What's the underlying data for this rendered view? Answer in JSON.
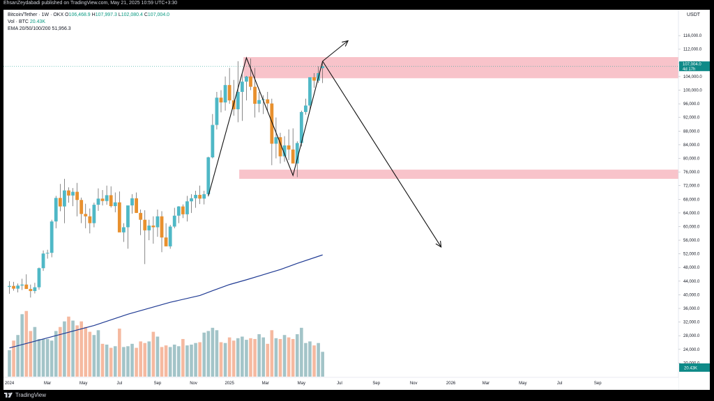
{
  "header": {
    "credit": "EhsanZeydabadi published on TradingView.com, May 21, 2025 10:59 UTC+3:30"
  },
  "legend": {
    "symbol": "Bitcoin/Tether · 1W · OKX",
    "ohlc": [
      {
        "k": "O",
        "v": "106,468.9"
      },
      {
        "k": "H",
        "v": "107,997.3"
      },
      {
        "k": "L",
        "v": "102,080.4"
      },
      {
        "k": "C",
        "v": "107,004.0"
      }
    ],
    "volume_label": "Vol · BTC",
    "volume_value": "20.43K",
    "ema_label": "EMA 20/50/100/200",
    "ema_value": "51,956.3"
  },
  "axis": {
    "currency": "USDT",
    "price_badge": "107,004.0",
    "countdown_badge": "4d 17h",
    "volume_badge": "20.43K"
  },
  "footer": {
    "brand": "TradingView"
  },
  "colors": {
    "up": "#4fb8c6",
    "down": "#e8902e",
    "vol_up": "#a3c4c8",
    "vol_down": "#f5b9a0",
    "ema": "#1f3a93",
    "zone": "#f5a3ad",
    "badge": "#0f8a88"
  },
  "chart_data": {
    "type": "candlestick",
    "symbol": "Bitcoin/Tether",
    "timeframe": "1W",
    "exchange": "OKX",
    "y_axis": {
      "ticks": [
        20000,
        24000,
        28000,
        32000,
        36000,
        40000,
        44000,
        48000,
        52000,
        56000,
        60000,
        64000,
        68000,
        72000,
        76000,
        80000,
        84000,
        88000,
        92000,
        96000,
        100000,
        104000,
        108000,
        112000,
        116000
      ],
      "tick_labels": [
        "20,000.0",
        "24,000.0",
        "28,000.0",
        "32,000.0",
        "36,000.0",
        "40,000.0",
        "44,000.0",
        "48,000.0",
        "52,000.0",
        "56,000.0",
        "60,000.0",
        "64,000.0",
        "68,000.0",
        "72,000.0",
        "76,000.0",
        "80,000.0",
        "84,000.0",
        "88,000.0",
        "92,000.0",
        "96,000.0",
        "100,000.0",
        "104,000.0",
        "108,000.0",
        "112,000.0",
        "116,000.0"
      ],
      "range": [
        16000,
        119500
      ]
    },
    "x_axis": {
      "labels": [
        {
          "text": "2024",
          "week": 0
        },
        {
          "text": "Mar",
          "week": 9
        },
        {
          "text": "May",
          "week": 17.5
        },
        {
          "text": "Jul",
          "week": 26
        },
        {
          "text": "Sep",
          "week": 35
        },
        {
          "text": "Nov",
          "week": 43.5
        },
        {
          "text": "2025",
          "week": 52
        },
        {
          "text": "Mar",
          "week": 60.5
        },
        {
          "text": "May",
          "week": 69
        },
        {
          "text": "Jul",
          "week": 78
        },
        {
          "text": "Sep",
          "week": 86.7
        },
        {
          "text": "Nov",
          "week": 95.5
        },
        {
          "text": "2026",
          "week": 104.3
        },
        {
          "text": "Mar",
          "week": 112.6
        },
        {
          "text": "May",
          "week": 121.3
        },
        {
          "text": "Jul",
          "week": 130
        },
        {
          "text": "Sep",
          "week": 139
        }
      ]
    },
    "candles_ohlc": [
      [
        42300,
        44000,
        40300,
        42600
      ],
      [
        42600,
        43800,
        41200,
        41800
      ],
      [
        41800,
        43300,
        40700,
        42700
      ],
      [
        42700,
        44700,
        41400,
        43000
      ],
      [
        43000,
        46000,
        42000,
        41700
      ],
      [
        41700,
        43000,
        39200,
        41100
      ],
      [
        41100,
        43500,
        40400,
        42200
      ],
      [
        42200,
        48000,
        41500,
        47800
      ],
      [
        47800,
        53000,
        47000,
        52100
      ],
      [
        52100,
        53200,
        50600,
        52300
      ],
      [
        52300,
        62000,
        51000,
        61500
      ],
      [
        61500,
        69000,
        59500,
        68400
      ],
      [
        68400,
        72500,
        64500,
        65900
      ],
      [
        65900,
        74000,
        61000,
        70600
      ],
      [
        70600,
        71500,
        67000,
        69100
      ],
      [
        69100,
        71300,
        66000,
        70200
      ],
      [
        70200,
        72800,
        63000,
        67800
      ],
      [
        67800,
        68500,
        61000,
        63700
      ],
      [
        63700,
        66700,
        59500,
        63000
      ],
      [
        63000,
        65300,
        58000,
        61000
      ],
      [
        61000,
        67000,
        59800,
        66400
      ],
      [
        66400,
        71200,
        64600,
        68200
      ],
      [
        68200,
        70700,
        66200,
        67500
      ],
      [
        67500,
        72000,
        66400,
        69200
      ],
      [
        69200,
        71800,
        65600,
        66000
      ],
      [
        66000,
        70000,
        64200,
        67100
      ],
      [
        67100,
        70300,
        59700,
        58300
      ],
      [
        58300,
        61000,
        55500,
        59800
      ],
      [
        59800,
        66000,
        53500,
        66200
      ],
      [
        66200,
        69500,
        63800,
        68300
      ],
      [
        68300,
        70000,
        64000,
        64000
      ],
      [
        64000,
        65000,
        57500,
        62000
      ],
      [
        62000,
        64800,
        49000,
        58900
      ],
      [
        58900,
        62000,
        56000,
        60300
      ],
      [
        60300,
        63000,
        55000,
        59800
      ],
      [
        59800,
        65000,
        57000,
        63000
      ],
      [
        63000,
        64500,
        52500,
        56800
      ],
      [
        56800,
        61000,
        55500,
        54200
      ],
      [
        54200,
        60500,
        53500,
        60000
      ],
      [
        60000,
        65500,
        59500,
        63200
      ],
      [
        63200,
        66000,
        61000,
        65900
      ],
      [
        65900,
        66500,
        62500,
        63600
      ],
      [
        63600,
        69000,
        61500,
        67400
      ],
      [
        67400,
        69500,
        64000,
        68300
      ],
      [
        68300,
        70500,
        65500,
        69300
      ],
      [
        69300,
        72000,
        66600,
        68200
      ],
      [
        68200,
        70500,
        66500,
        69500
      ],
      [
        69500,
        80500,
        68800,
        80300
      ],
      [
        80300,
        93000,
        80000,
        89800
      ],
      [
        89800,
        99500,
        88500,
        97800
      ],
      [
        97800,
        100000,
        93500,
        96400
      ],
      [
        96400,
        104000,
        94000,
        101500
      ],
      [
        101500,
        106500,
        96000,
        97000
      ],
      [
        97000,
        103000,
        92500,
        94400
      ],
      [
        94400,
        108500,
        90600,
        99500
      ],
      [
        99500,
        105000,
        91000,
        102500
      ],
      [
        102500,
        104200,
        97000,
        104000
      ],
      [
        104000,
        109300,
        100000,
        101000
      ],
      [
        101000,
        106500,
        92000,
        96000
      ],
      [
        96000,
        99500,
        93500,
        97100
      ],
      [
        97100,
        98500,
        93000,
        97300
      ],
      [
        97300,
        99500,
        94000,
        96100
      ],
      [
        96100,
        97500,
        78000,
        84300
      ],
      [
        84300,
        92000,
        80000,
        86200
      ],
      [
        86200,
        87500,
        78500,
        80600
      ],
      [
        80600,
        86500,
        79000,
        83800
      ],
      [
        83800,
        88500,
        79500,
        82600
      ],
      [
        82600,
        88800,
        81000,
        78500
      ],
      [
        78500,
        85000,
        74500,
        84500
      ],
      [
        84500,
        94000,
        83500,
        93600
      ],
      [
        93600,
        97500,
        92800,
        95500
      ],
      [
        95500,
        100500,
        94000,
        103800
      ],
      [
        103800,
        105000,
        100700,
        102800
      ],
      [
        102800,
        107000,
        102100,
        105000
      ],
      [
        106469,
        107997,
        102080,
        107004
      ]
    ],
    "volume_relative": [
      0.33,
      0.45,
      0.52,
      0.78,
      0.82,
      0.57,
      0.62,
      0.47,
      0.47,
      0.47,
      0.45,
      0.57,
      0.62,
      0.69,
      0.75,
      0.7,
      0.64,
      0.69,
      0.62,
      0.56,
      0.52,
      0.58,
      0.41,
      0.4,
      0.36,
      0.38,
      0.6,
      0.37,
      0.38,
      0.41,
      0.36,
      0.44,
      0.42,
      0.44,
      0.56,
      0.5,
      0.37,
      0.39,
      0.37,
      0.4,
      0.38,
      0.47,
      0.39,
      0.4,
      0.42,
      0.43,
      0.55,
      0.57,
      0.61,
      0.58,
      0.43,
      0.42,
      0.49,
      0.45,
      0.48,
      0.5,
      0.46,
      0.48,
      0.47,
      0.53,
      0.49,
      0.41,
      0.58,
      0.48,
      0.47,
      0.52,
      0.49,
      0.47,
      0.53,
      0.61,
      0.42,
      0.44,
      0.39,
      0.42,
      0.31
    ],
    "ema_200": [
      [
        0,
        24400
      ],
      [
        10,
        27700
      ],
      [
        20,
        31000
      ],
      [
        28,
        34300
      ],
      [
        38,
        37800
      ],
      [
        45,
        39800
      ],
      [
        48,
        41200
      ],
      [
        52,
        43000
      ],
      [
        56,
        44400
      ],
      [
        60,
        45900
      ],
      [
        64,
        47400
      ],
      [
        68,
        49200
      ],
      [
        74,
        51700
      ]
    ],
    "zones": [
      {
        "from": 103500,
        "to": 109700
      },
      {
        "from": 74000,
        "to": 76700
      }
    ],
    "annotations": {
      "pattern_line": [
        [
          47,
          69000
        ],
        [
          56,
          109500
        ],
        [
          67,
          75000
        ],
        [
          74,
          108500
        ]
      ],
      "arrow_up": {
        "from": [
          74,
          108500
        ],
        "to": [
          80,
          114500
        ]
      },
      "arrow_down": {
        "from": [
          74,
          108500
        ],
        "to": [
          102,
          54000
        ]
      }
    },
    "current_price": 107004.0
  }
}
